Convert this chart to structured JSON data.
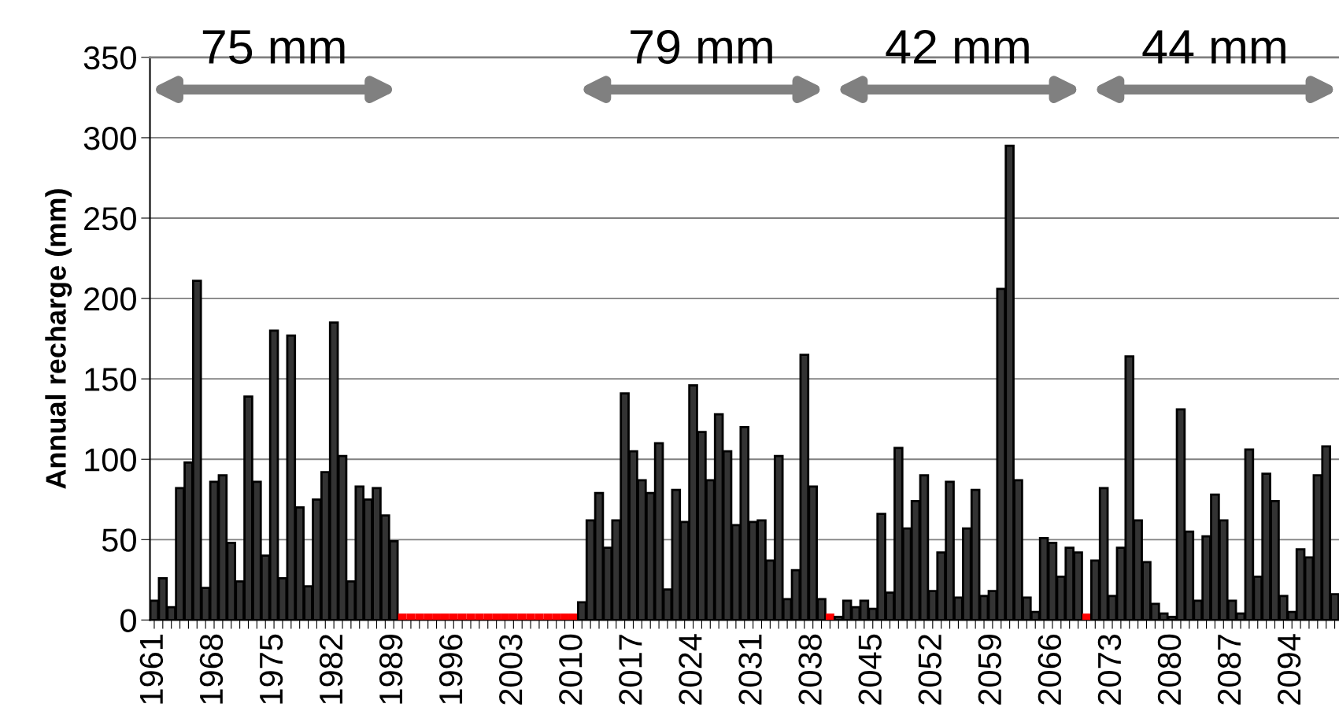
{
  "chart_data": {
    "type": "bar",
    "ylabel": "Annual recharge (mm)",
    "categories": [
      "1961",
      null,
      null,
      null,
      null,
      null,
      null,
      "1968",
      null,
      null,
      null,
      null,
      null,
      null,
      "1975",
      null,
      null,
      null,
      null,
      null,
      null,
      "1982",
      null,
      null,
      null,
      null,
      null,
      null,
      "1989",
      null,
      null,
      null,
      null,
      null,
      null,
      "1996",
      null,
      null,
      null,
      null,
      null,
      null,
      "2003",
      null,
      null,
      null,
      null,
      null,
      null,
      "2010",
      null,
      null,
      null,
      null,
      null,
      null,
      "2017",
      null,
      null,
      null,
      null,
      null,
      null,
      "2024",
      null,
      null,
      null,
      null,
      null,
      null,
      "2031",
      null,
      null,
      null,
      null,
      null,
      null,
      "2038",
      null,
      null,
      null,
      null,
      null,
      null,
      "2045",
      null,
      null,
      null,
      null,
      null,
      null,
      "2052",
      null,
      null,
      null,
      null,
      null,
      null,
      "2059",
      null,
      null,
      null,
      null,
      null,
      null,
      "2066",
      null,
      null,
      null,
      null,
      null,
      null,
      "2073",
      null,
      null,
      null,
      null,
      null,
      null,
      "2080",
      null,
      null,
      null,
      null,
      null,
      null,
      "2087",
      null,
      null,
      null,
      null,
      null,
      null,
      "2094",
      null,
      null,
      null,
      null,
      null
    ],
    "values": [
      12,
      26,
      8,
      82,
      98,
      211,
      20,
      86,
      90,
      48,
      24,
      139,
      86,
      40,
      180,
      26,
      177,
      70,
      21,
      75,
      92,
      185,
      102,
      24,
      83,
      75,
      82,
      65,
      49,
      4,
      4,
      4,
      4,
      4,
      4,
      4,
      4,
      4,
      4,
      4,
      4,
      4,
      4,
      4,
      4,
      4,
      4,
      4,
      4,
      4,
      11,
      62,
      79,
      45,
      62,
      141,
      105,
      87,
      79,
      110,
      19,
      81,
      61,
      146,
      117,
      87,
      128,
      105,
      59,
      120,
      61,
      62,
      37,
      102,
      13,
      31,
      165,
      83,
      13,
      4,
      2,
      12,
      8,
      12,
      7,
      66,
      17,
      107,
      57,
      74,
      90,
      18,
      42,
      86,
      14,
      57,
      81,
      15,
      18,
      206,
      295,
      87,
      14,
      5,
      51,
      48,
      27,
      45,
      42,
      4,
      37,
      82,
      15,
      45,
      164,
      62,
      36,
      10,
      4,
      2,
      131,
      55,
      12,
      52,
      78,
      62,
      12,
      4,
      106,
      27,
      91,
      74,
      15,
      5,
      44,
      39,
      90,
      108,
      16
    ],
    "colors": [
      "#333333",
      "#333333",
      "#333333",
      "#333333",
      "#333333",
      "#333333",
      "#333333",
      "#333333",
      "#333333",
      "#333333",
      "#333333",
      "#333333",
      "#333333",
      "#333333",
      "#333333",
      "#333333",
      "#333333",
      "#333333",
      "#333333",
      "#333333",
      "#333333",
      "#333333",
      "#333333",
      "#333333",
      "#333333",
      "#333333",
      "#333333",
      "#333333",
      "#333333",
      "#ff0000",
      "#ff0000",
      "#ff0000",
      "#ff0000",
      "#ff0000",
      "#ff0000",
      "#ff0000",
      "#ff0000",
      "#ff0000",
      "#ff0000",
      "#ff0000",
      "#ff0000",
      "#ff0000",
      "#ff0000",
      "#ff0000",
      "#ff0000",
      "#ff0000",
      "#ff0000",
      "#ff0000",
      "#ff0000",
      "#ff0000",
      "#333333",
      "#333333",
      "#333333",
      "#333333",
      "#333333",
      "#333333",
      "#333333",
      "#333333",
      "#333333",
      "#333333",
      "#333333",
      "#333333",
      "#333333",
      "#333333",
      "#333333",
      "#333333",
      "#333333",
      "#333333",
      "#333333",
      "#333333",
      "#333333",
      "#333333",
      "#333333",
      "#333333",
      "#333333",
      "#333333",
      "#333333",
      "#333333",
      "#333333",
      "#ff0000",
      "#333333",
      "#333333",
      "#333333",
      "#333333",
      "#333333",
      "#333333",
      "#333333",
      "#333333",
      "#333333",
      "#333333",
      "#333333",
      "#333333",
      "#333333",
      "#333333",
      "#333333",
      "#333333",
      "#333333",
      "#333333",
      "#333333",
      "#333333",
      "#333333",
      "#333333",
      "#333333",
      "#333333",
      "#333333",
      "#333333",
      "#333333",
      "#333333",
      "#333333",
      "#ff0000",
      "#333333",
      "#333333",
      "#333333",
      "#333333",
      "#333333",
      "#333333",
      "#333333",
      "#333333",
      "#333333",
      "#333333",
      "#333333",
      "#333333",
      "#333333",
      "#333333",
      "#333333",
      "#333333",
      "#333333",
      "#333333",
      "#333333",
      "#333333",
      "#333333",
      "#333333",
      "#333333",
      "#333333",
      "#333333",
      "#333333",
      "#333333",
      "#333333",
      "#333333"
    ],
    "ylim": [
      0,
      350
    ],
    "yticks": [
      0,
      50,
      100,
      150,
      200,
      250,
      300,
      350
    ],
    "grid": "y",
    "annotations": [
      "75 mm",
      "79 mm",
      "42 mm",
      "44 mm"
    ]
  }
}
